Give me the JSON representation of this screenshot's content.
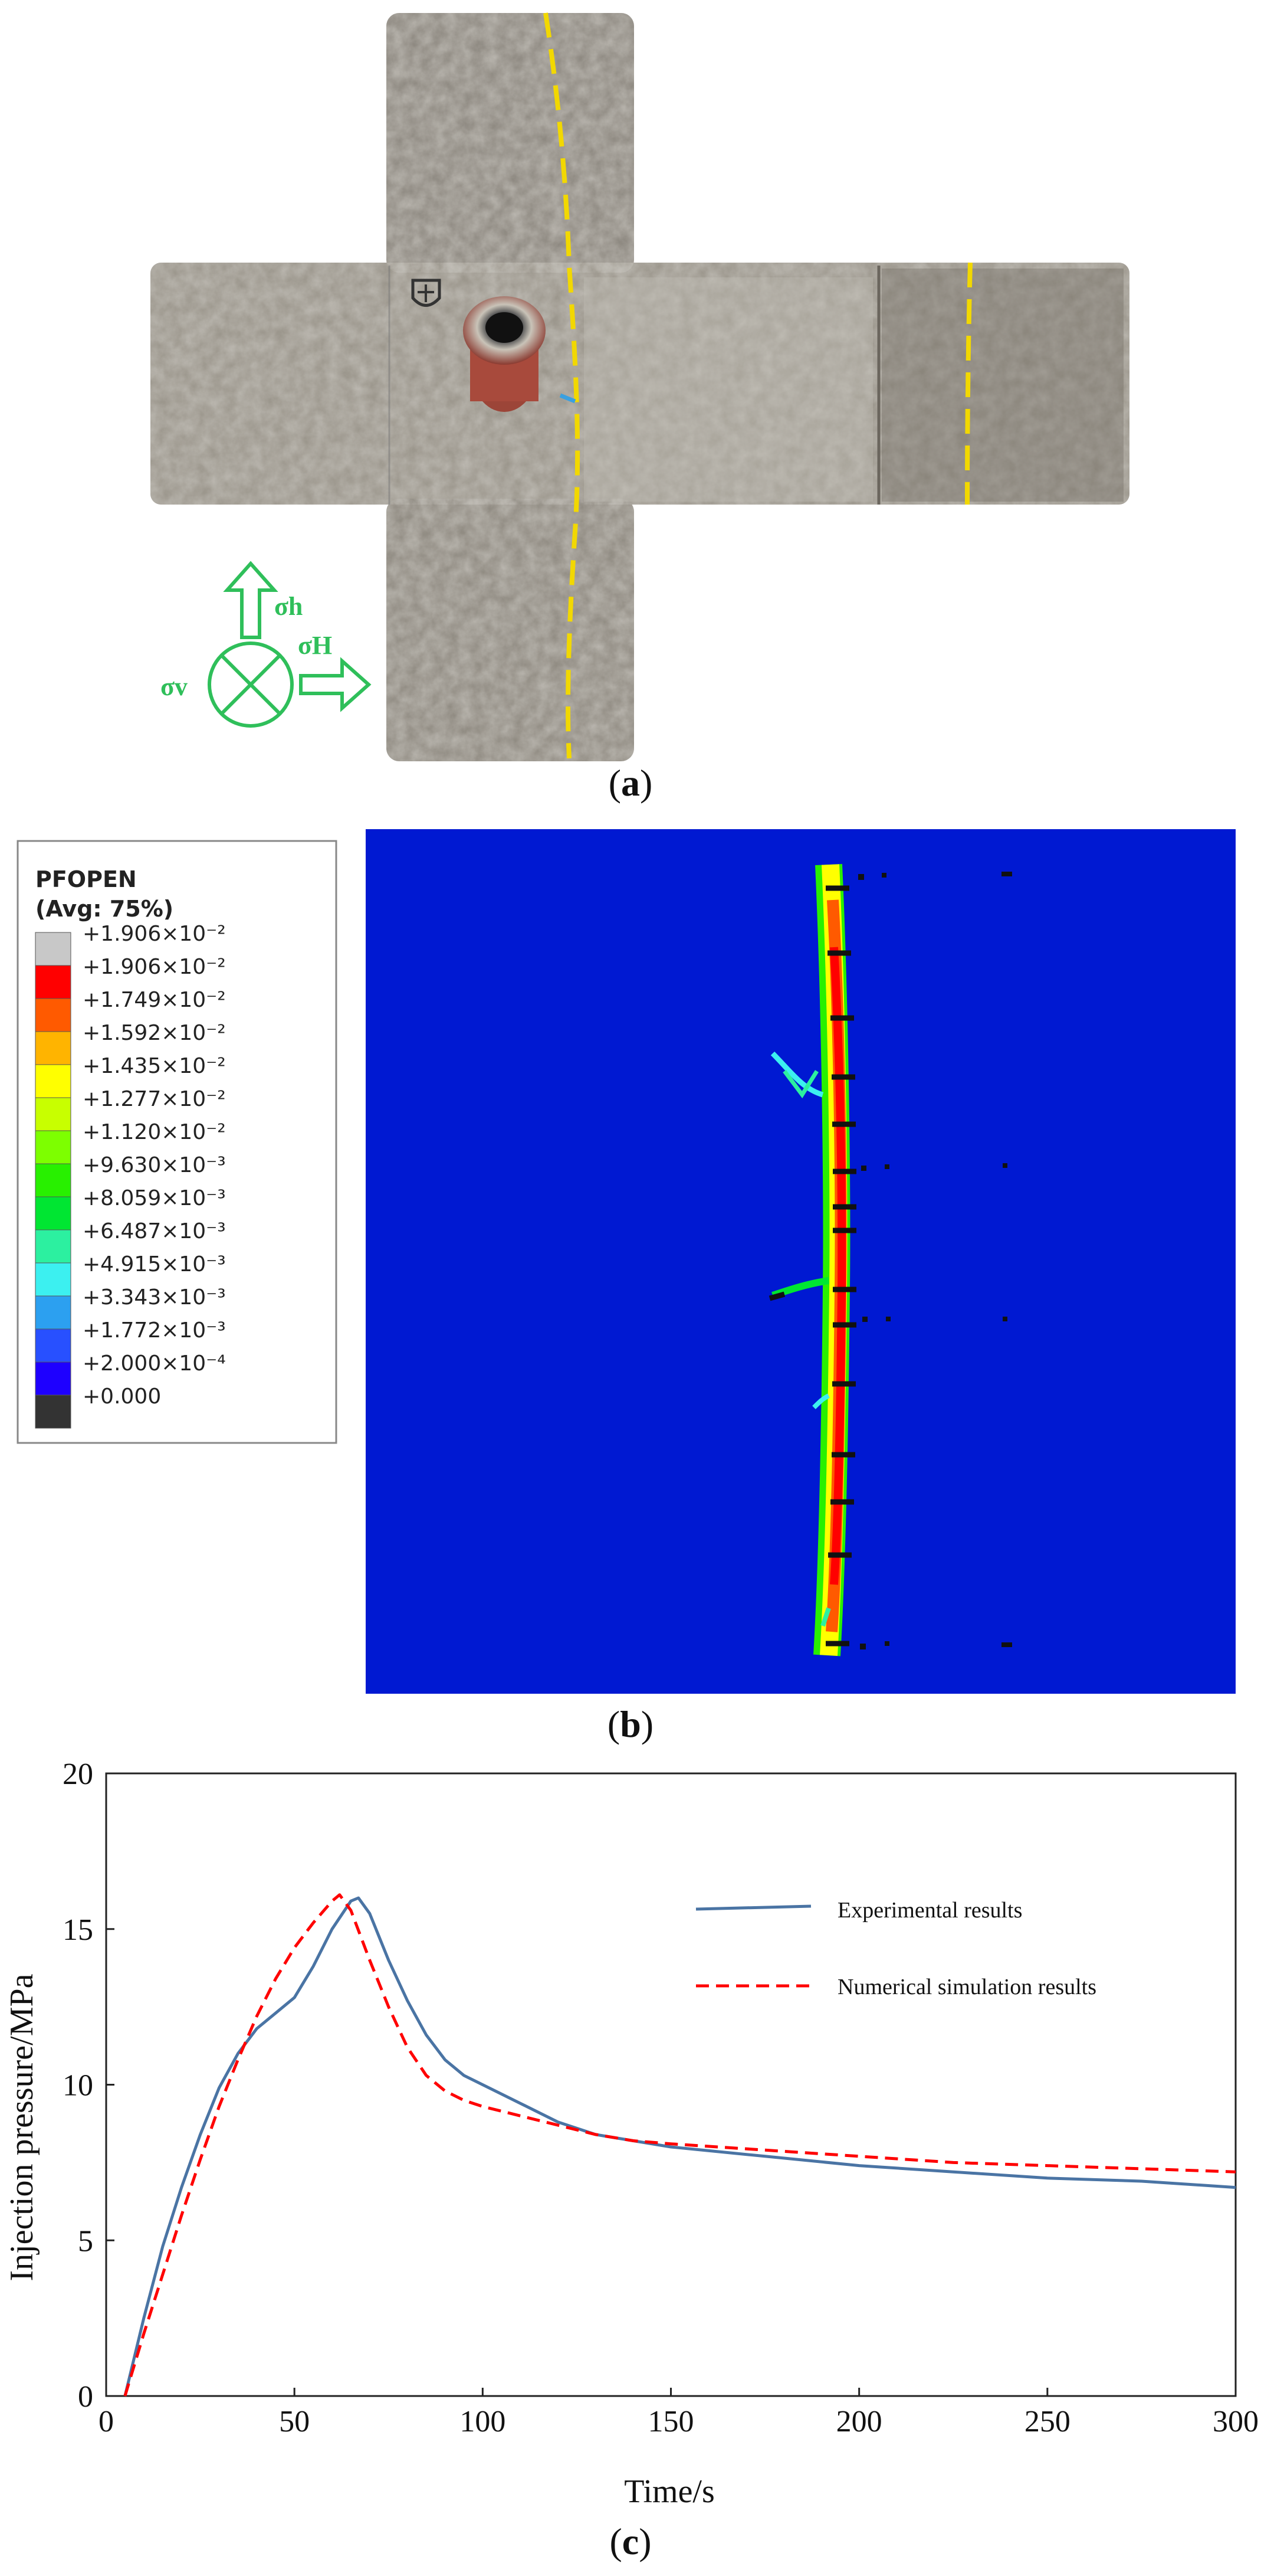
{
  "panel_a": {
    "caption": "a",
    "stress_labels": {
      "sigma_h": "σh",
      "sigma_H": "σH",
      "sigma_v": "σv"
    },
    "colors": {
      "crack_line": "#f2d800",
      "stress_symbol": "#2fbf5a",
      "rock": "#9a948a"
    }
  },
  "panel_b": {
    "caption": "b",
    "legend": {
      "title": "PFOPEN",
      "subtitle": "(Avg: 75%)",
      "entries": [
        {
          "label": "+1.906×10⁻²",
          "color": "#c8c8c8"
        },
        {
          "label": "+1.906×10⁻²",
          "color": "#ff0000"
        },
        {
          "label": "+1.749×10⁻²",
          "color": "#ff5a00"
        },
        {
          "label": "+1.592×10⁻²",
          "color": "#ffb400"
        },
        {
          "label": "+1.435×10⁻²",
          "color": "#ffff00"
        },
        {
          "label": "+1.277×10⁻²",
          "color": "#c8ff00"
        },
        {
          "label": "+1.120×10⁻²",
          "color": "#7dff00"
        },
        {
          "label": "+9.630×10⁻³",
          "color": "#28f000"
        },
        {
          "label": "+8.059×10⁻³",
          "color": "#00e632"
        },
        {
          "label": "+6.487×10⁻³",
          "color": "#2cf0a0"
        },
        {
          "label": "+4.915×10⁻³",
          "color": "#3cf0f0"
        },
        {
          "label": "+3.343×10⁻³",
          "color": "#2ca0f0"
        },
        {
          "label": "+1.772×10⁻³",
          "color": "#2850ff"
        },
        {
          "label": "+2.000×10⁻⁴",
          "color": "#1e00ff"
        },
        {
          "label": "+0.000",
          "color": "#333333"
        }
      ]
    },
    "colors": {
      "background": "#0019d2"
    }
  },
  "panel_c": {
    "caption": "c"
  },
  "chart_data": {
    "type": "line",
    "title": "",
    "xlabel": "Time/s",
    "ylabel": "Injection pressure/MPa",
    "xlim": [
      0,
      300
    ],
    "ylim": [
      0,
      20
    ],
    "xticks": [
      0,
      50,
      100,
      150,
      200,
      250,
      300
    ],
    "yticks": [
      0,
      5,
      10,
      15,
      20
    ],
    "grid": false,
    "legend_position": "top-right",
    "series": [
      {
        "name": "Experimental results",
        "color": "#4a74a4",
        "style": "solid",
        "x": [
          5,
          10,
          15,
          20,
          25,
          30,
          35,
          40,
          45,
          50,
          55,
          60,
          65,
          67,
          70,
          75,
          80,
          85,
          90,
          95,
          100,
          110,
          120,
          130,
          140,
          150,
          175,
          200,
          225,
          250,
          275,
          300
        ],
        "y": [
          0,
          2.5,
          4.8,
          6.7,
          8.4,
          9.9,
          11.0,
          11.8,
          12.3,
          12.8,
          13.8,
          15.0,
          15.9,
          16.0,
          15.5,
          14.0,
          12.7,
          11.6,
          10.8,
          10.3,
          10.0,
          9.4,
          8.8,
          8.4,
          8.2,
          8.0,
          7.7,
          7.4,
          7.2,
          7.0,
          6.9,
          6.7
        ]
      },
      {
        "name": "Numerical simulation results",
        "color": "#ff0000",
        "style": "dashed",
        "x": [
          5,
          10,
          15,
          20,
          25,
          30,
          35,
          40,
          45,
          50,
          55,
          60,
          62,
          65,
          70,
          75,
          80,
          85,
          90,
          95,
          100,
          110,
          120,
          130,
          140,
          150,
          175,
          200,
          225,
          250,
          275,
          300
        ],
        "y": [
          0,
          2.0,
          3.9,
          5.8,
          7.6,
          9.3,
          10.8,
          12.2,
          13.4,
          14.4,
          15.2,
          15.9,
          16.1,
          15.6,
          14.0,
          12.5,
          11.2,
          10.3,
          9.8,
          9.5,
          9.3,
          9.0,
          8.7,
          8.4,
          8.2,
          8.1,
          7.9,
          7.7,
          7.5,
          7.4,
          7.3,
          7.2
        ]
      }
    ]
  }
}
